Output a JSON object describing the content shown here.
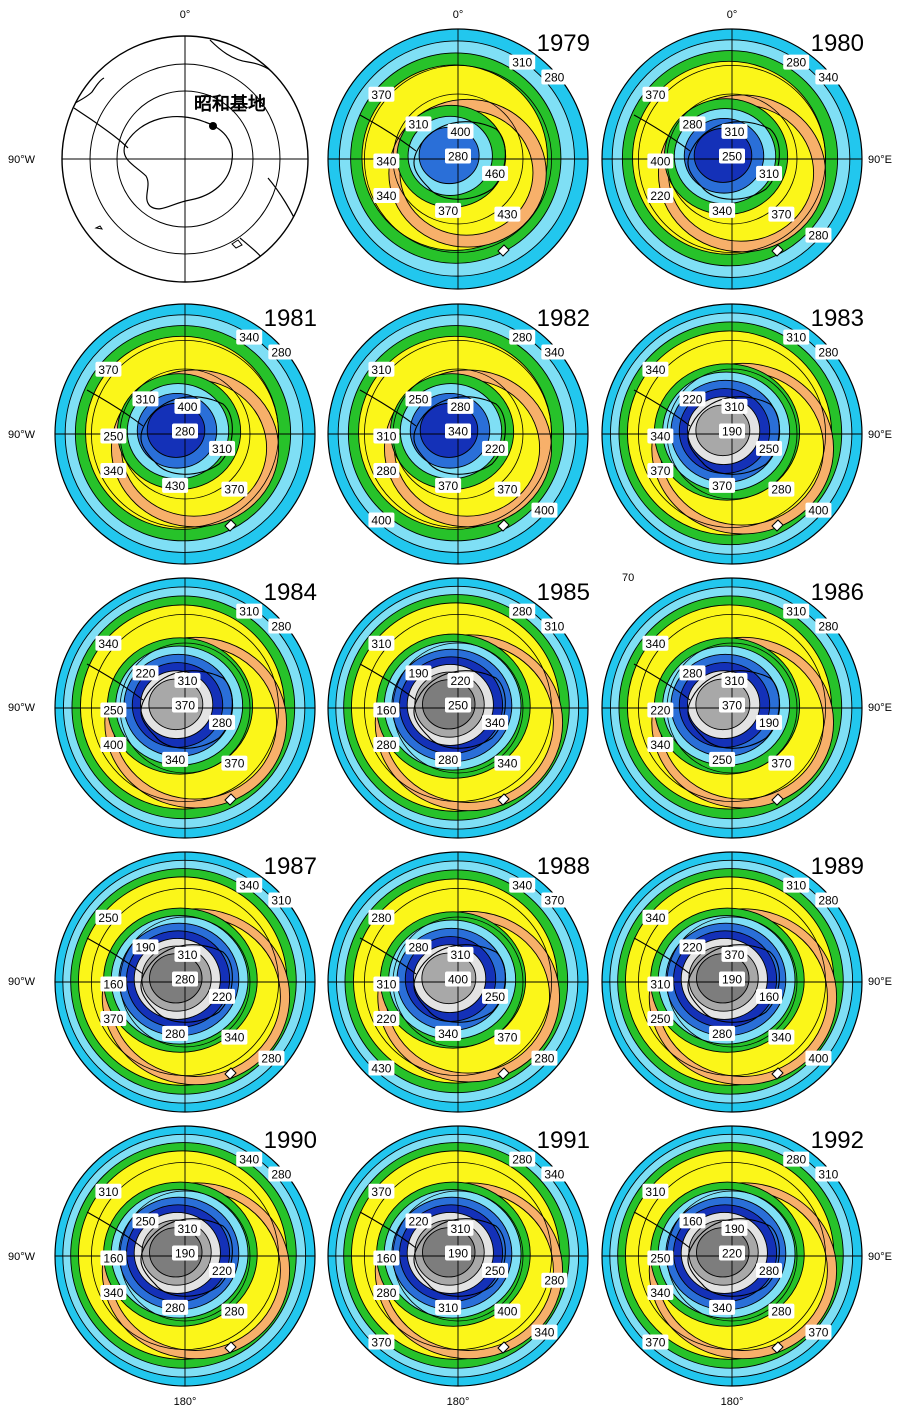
{
  "figure": {
    "axis_labels": {
      "top": "0°",
      "bottom": "180°",
      "left": "90°W",
      "right": "90°E"
    },
    "stray_label": "70",
    "colors": {
      "outer_cyan": "#22c7ee",
      "light_cyan": "#7fdff5",
      "green": "#27c22a",
      "yellow": "#fbf619",
      "light_orange": "#f7b06a",
      "orange": "#f07a1c",
      "red_orange": "#e0431a",
      "blue": "#2a6fd8",
      "dark_blue": "#1431b8",
      "light_gray": "#e3e3e3",
      "gray": "#a8a8a8",
      "dark_gray": "#7d7d7d"
    }
  },
  "reference_map": {
    "station_label": "昭和基地",
    "symbol": "station-dot"
  },
  "panels": [
    {
      "year": "1979",
      "minimum": 280,
      "labels": [
        "310",
        "280",
        "370",
        "400",
        "310",
        "280",
        "340",
        "460",
        "340",
        "370",
        "430"
      ]
    },
    {
      "year": "1980",
      "minimum": 220,
      "labels": [
        "280",
        "340",
        "370",
        "310",
        "280",
        "250",
        "400",
        "310",
        "220",
        "340",
        "370",
        "280"
      ]
    },
    {
      "year": "1981",
      "minimum": 250,
      "labels": [
        "340",
        "280",
        "370",
        "400",
        "310",
        "280",
        "250",
        "310",
        "340",
        "430",
        "370"
      ]
    },
    {
      "year": "1982",
      "minimum": 220,
      "labels": [
        "280",
        "340",
        "310",
        "280",
        "250",
        "340",
        "310",
        "220",
        "280",
        "370",
        "370",
        "400",
        "400"
      ]
    },
    {
      "year": "1983",
      "minimum": 190,
      "labels": [
        "310",
        "280",
        "340",
        "310",
        "220",
        "190",
        "340",
        "250",
        "370",
        "370",
        "280",
        "400"
      ]
    },
    {
      "year": "1984",
      "minimum": 190,
      "labels": [
        "310",
        "280",
        "340",
        "310",
        "220",
        "370",
        "250",
        "280",
        "400",
        "340",
        "370"
      ]
    },
    {
      "year": "1985",
      "minimum": 160,
      "labels": [
        "280",
        "310",
        "310",
        "220",
        "190",
        "250",
        "160",
        "340",
        "280",
        "280",
        "340"
      ]
    },
    {
      "year": "1986",
      "minimum": 190,
      "labels": [
        "310",
        "280",
        "340",
        "310",
        "280",
        "370",
        "220",
        "190",
        "340",
        "250",
        "370"
      ]
    },
    {
      "year": "1987",
      "minimum": 160,
      "labels": [
        "340",
        "310",
        "250",
        "310",
        "190",
        "280",
        "160",
        "220",
        "370",
        "280",
        "340",
        "280"
      ]
    },
    {
      "year": "1988",
      "minimum": 190,
      "labels": [
        "340",
        "370",
        "280",
        "310",
        "280",
        "400",
        "310",
        "250",
        "220",
        "340",
        "370",
        "280",
        "430"
      ]
    },
    {
      "year": "1989",
      "minimum": 160,
      "labels": [
        "310",
        "280",
        "340",
        "370",
        "220",
        "190",
        "310",
        "160",
        "250",
        "280",
        "340",
        "400"
      ]
    },
    {
      "year": "1990",
      "minimum": 160,
      "labels": [
        "340",
        "280",
        "310",
        "310",
        "250",
        "190",
        "160",
        "220",
        "340",
        "280",
        "280"
      ]
    },
    {
      "year": "1991",
      "minimum": 160,
      "labels": [
        "280",
        "340",
        "370",
        "310",
        "220",
        "190",
        "160",
        "250",
        "280",
        "310",
        "400",
        "340",
        "370",
        "280"
      ]
    },
    {
      "year": "1992",
      "minimum": 160,
      "labels": [
        "280",
        "310",
        "310",
        "190",
        "160",
        "220",
        "250",
        "280",
        "340",
        "340",
        "280",
        "370",
        "370"
      ]
    }
  ]
}
